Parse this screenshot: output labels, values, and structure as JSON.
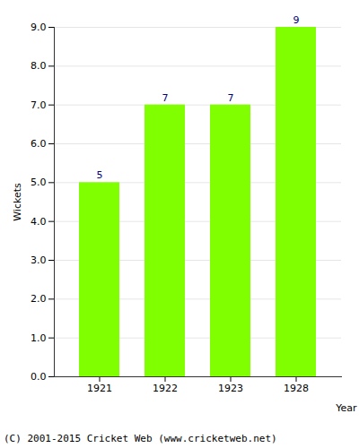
{
  "chart_data": {
    "type": "bar",
    "caption": "(C) 2001-2015 Cricket Web (www.cricketweb.net)",
    "x_label": "Year",
    "y_label": "Wickets",
    "categories": [
      "1921",
      "1922",
      "1923",
      "1928"
    ],
    "values": [
      5,
      7,
      7,
      9
    ],
    "color": "#80ff00",
    "ylim": [
      0,
      9
    ],
    "yticks": [
      {
        "value": 0,
        "label": "0.0"
      },
      {
        "value": 1,
        "label": "1.0"
      },
      {
        "value": 2,
        "label": "2.0"
      },
      {
        "value": 3,
        "label": "3.0"
      },
      {
        "value": 4,
        "label": "4.0"
      },
      {
        "value": 5,
        "label": "5.0"
      },
      {
        "value": 6,
        "label": "6.0"
      },
      {
        "value": 7,
        "label": "7.0"
      },
      {
        "value": 8,
        "label": "8.0"
      },
      {
        "value": 9,
        "label": "9.0"
      }
    ],
    "grid": true,
    "data_labels": true
  }
}
